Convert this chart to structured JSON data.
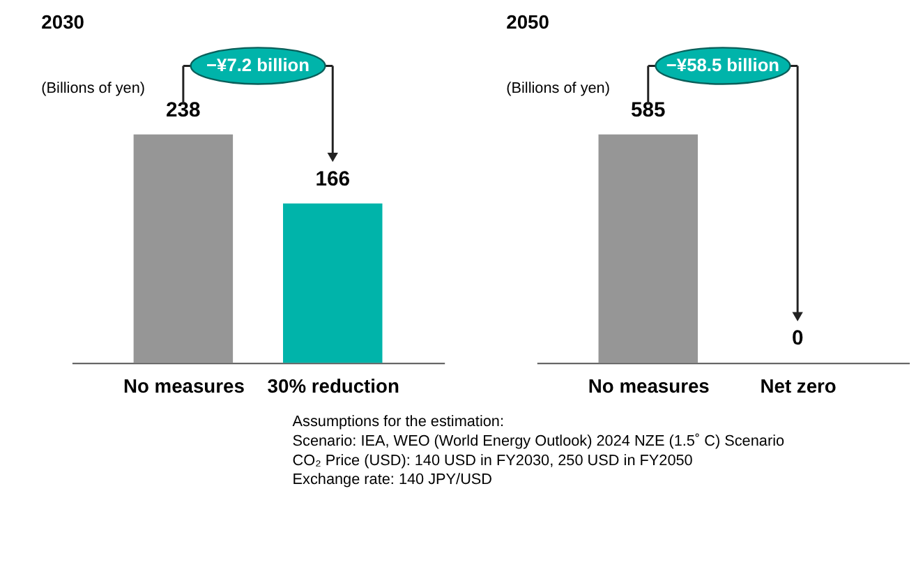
{
  "chart_data": [
    {
      "type": "bar",
      "title": "2030",
      "ylabel": "(Billions of yen)",
      "categories": [
        "No measures",
        "30% reduction"
      ],
      "values": [
        238,
        166
      ],
      "colors": [
        "#969696",
        "#00b4aa"
      ],
      "data_labels": true,
      "annotations": [
        "−¥7.2 billion"
      ]
    },
    {
      "type": "bar",
      "title": "2050",
      "ylabel": "(Billions of yen)",
      "categories": [
        "No measures",
        "Net zero"
      ],
      "values": [
        585,
        0
      ],
      "colors": [
        "#969696",
        "#00b4aa"
      ],
      "data_labels": true,
      "annotations": [
        "−¥58.5 billion",
        "Assumptions for the estimation:",
        "Scenario: IEA, WEO (World Energy Outlook) 2024 NZE (1.5˚ C) Scenario",
        "CO₂ Price (USD): 140 USD in FY2030, 250 USD in FY2050",
        "Exchange rate: 140 JPY/USD"
      ]
    }
  ]
}
